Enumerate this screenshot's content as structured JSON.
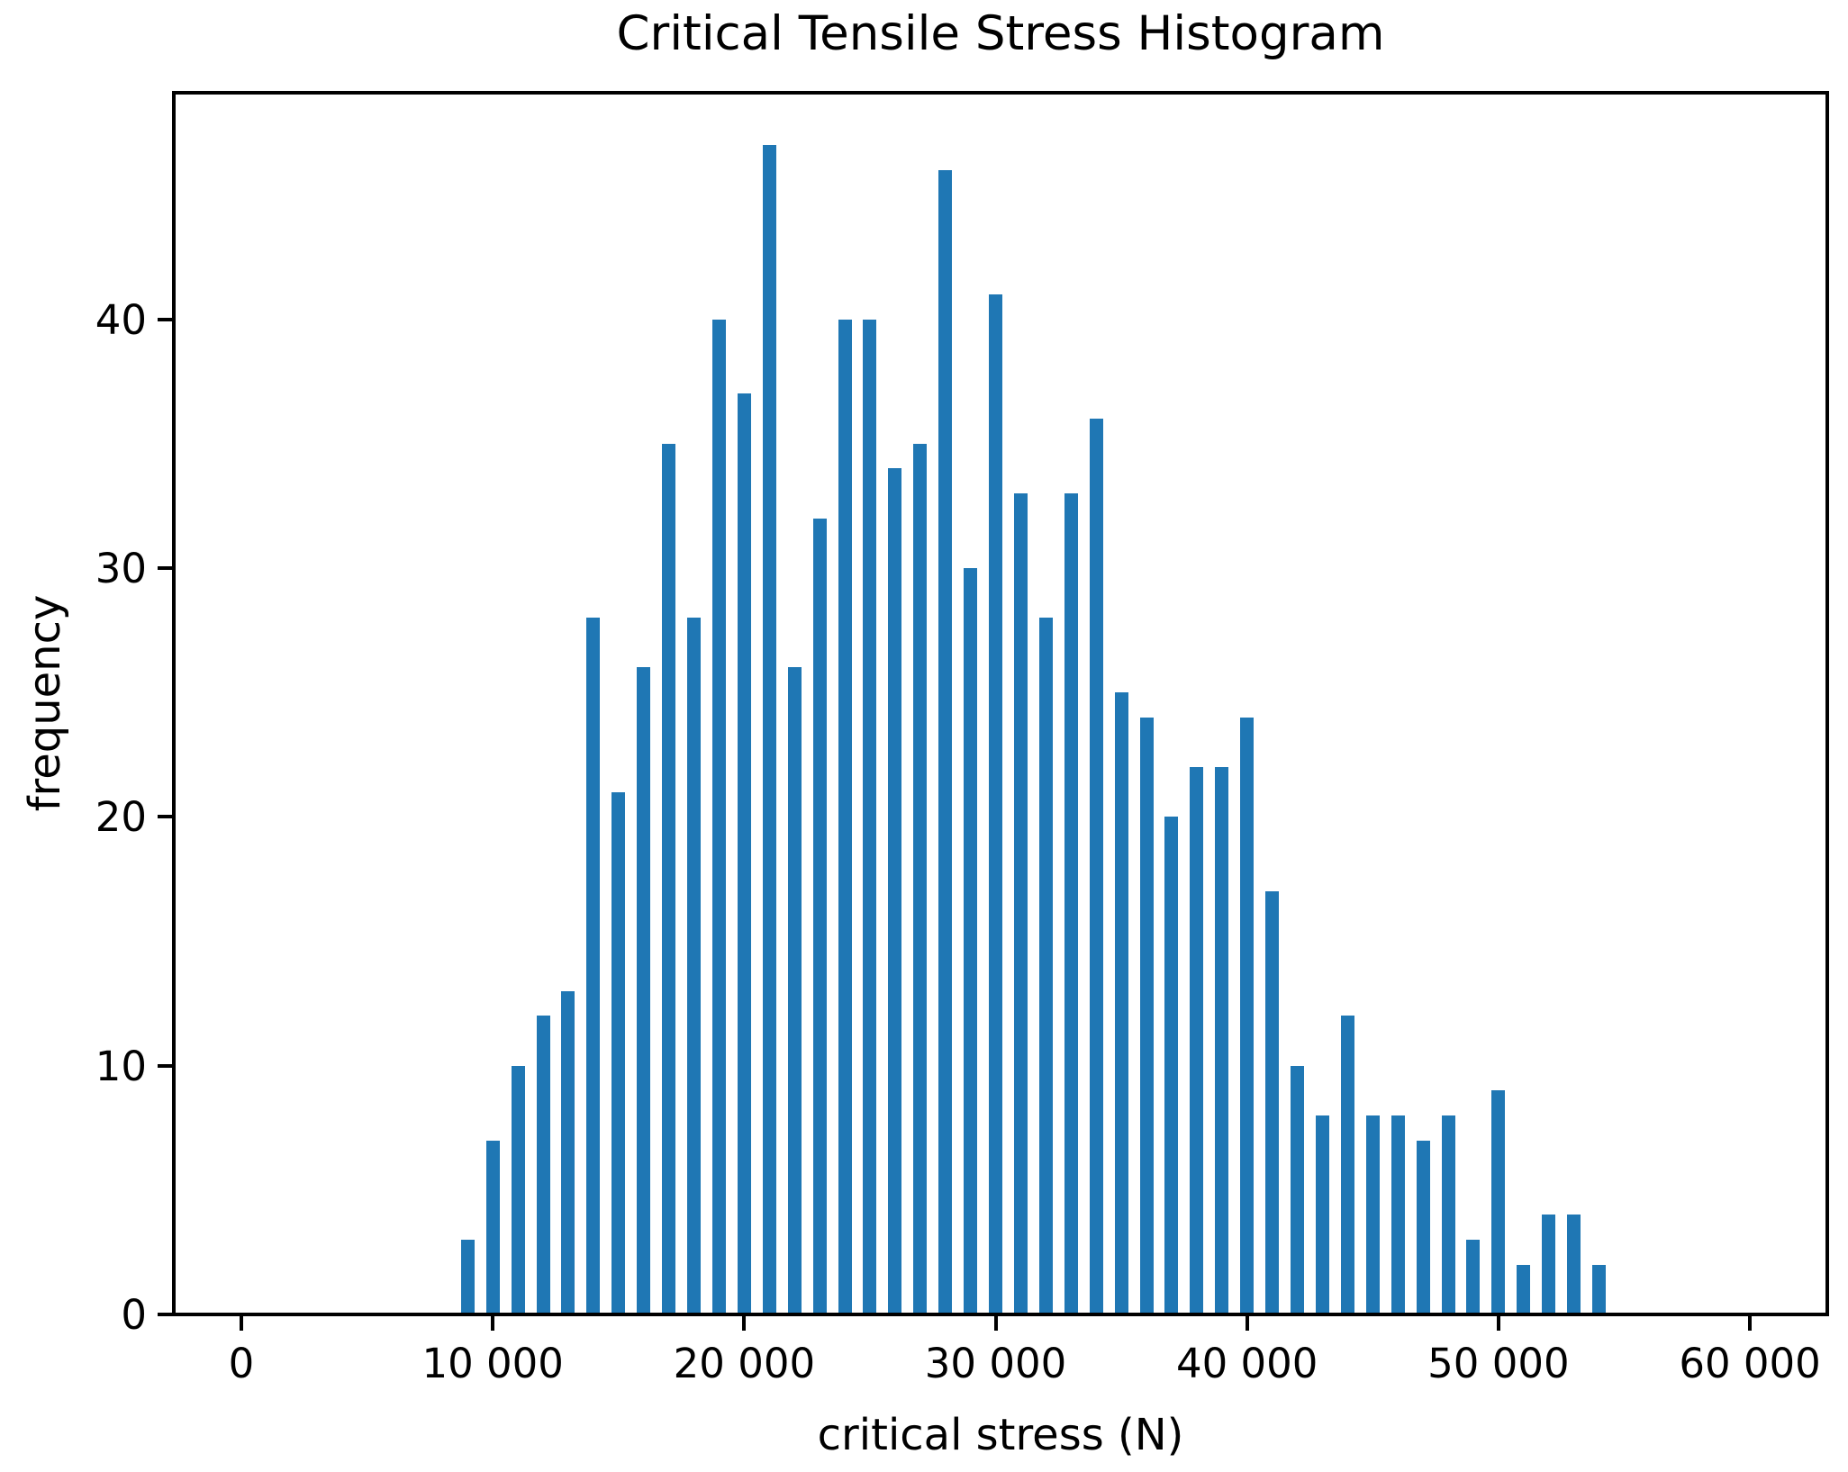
{
  "chart_data": {
    "type": "bar",
    "subtype": "histogram",
    "title": "Critical Tensile Stress Histogram",
    "xlabel": "critical stress (N)",
    "ylabel": "frequency",
    "bar_color": "#1f77b4",
    "text_color": "#000000",
    "axis_color": "#000000",
    "background_color": "#ffffff",
    "grid": "off",
    "legend": "none",
    "bin_width": 1000,
    "bin_centers": [
      9000,
      10000,
      11000,
      12000,
      13000,
      14000,
      15000,
      16000,
      17000,
      18000,
      19000,
      20000,
      21000,
      22000,
      23000,
      24000,
      25000,
      26000,
      27000,
      28000,
      29000,
      30000,
      31000,
      32000,
      33000,
      34000,
      35000,
      36000,
      37000,
      38000,
      39000,
      40000,
      41000,
      42000,
      43000,
      44000,
      45000,
      46000,
      47000,
      48000,
      49000,
      50000,
      51000,
      52000,
      53000,
      54000
    ],
    "frequencies": [
      3,
      7,
      10,
      12,
      13,
      28,
      21,
      26,
      35,
      28,
      40,
      37,
      47,
      26,
      32,
      40,
      40,
      34,
      35,
      46,
      30,
      41,
      33,
      28,
      33,
      36,
      25,
      24,
      20,
      22,
      22,
      24,
      17,
      10,
      8,
      12,
      8,
      8,
      7,
      8,
      3,
      9,
      2,
      4,
      4,
      2
    ],
    "x_tick_values": [
      0,
      10000,
      20000,
      30000,
      40000,
      50000,
      60000
    ],
    "x_tick_labels": [
      "0",
      "10 000",
      "20 000",
      "30 000",
      "40 000",
      "50 000",
      "60 000"
    ],
    "y_tick_values": [
      0,
      10,
      20,
      30,
      40
    ],
    "y_tick_labels": [
      "0",
      "10",
      "20",
      "30",
      "40"
    ],
    "xlim": [
      -2687,
      63078
    ],
    "ylim": [
      0,
      49.1
    ]
  }
}
